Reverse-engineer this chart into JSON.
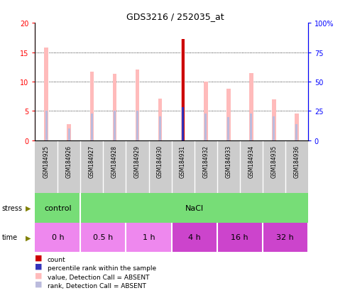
{
  "title": "GDS3216 / 252035_at",
  "samples": [
    "GSM184925",
    "GSM184926",
    "GSM184927",
    "GSM184928",
    "GSM184929",
    "GSM184930",
    "GSM184931",
    "GSM184932",
    "GSM184933",
    "GSM184934",
    "GSM184935",
    "GSM184936"
  ],
  "pink_bar_heights": [
    15.8,
    2.7,
    11.7,
    11.3,
    12.1,
    7.1,
    17.2,
    10.0,
    8.8,
    11.4,
    7.0,
    4.5
  ],
  "blue_bar_heights": [
    5.0,
    2.0,
    4.6,
    5.0,
    5.0,
    4.1,
    5.6,
    4.6,
    3.9,
    4.6,
    4.1,
    2.8
  ],
  "count_heights": [
    0,
    0,
    0,
    0,
    0,
    0,
    17.2,
    0,
    0,
    0,
    0,
    0
  ],
  "percentile_rank_heights": [
    0,
    0,
    0,
    0,
    0,
    0,
    5.6,
    0,
    0,
    0,
    0,
    0
  ],
  "pink_bar_width": 0.18,
  "blue_bar_width": 0.1,
  "count_bar_width": 0.12,
  "percentile_bar_width": 0.08,
  "ylim_left": [
    0,
    20
  ],
  "ylim_right": [
    0,
    100
  ],
  "yticks_left": [
    0,
    5,
    10,
    15,
    20
  ],
  "yticks_right": [
    0,
    25,
    50,
    75,
    100
  ],
  "ytick_labels_left": [
    "0",
    "5",
    "10",
    "15",
    "20"
  ],
  "ytick_labels_right": [
    "0",
    "25",
    "50",
    "75",
    "100%"
  ],
  "count_color": "#cc0000",
  "pink_color": "#ffbbbb",
  "blue_rank_color": "#bbbbdd",
  "percentile_color": "#3333bb",
  "stress_regions": [
    {
      "label": "control",
      "xstart": 0,
      "xend": 2,
      "color": "#77dd77"
    },
    {
      "label": "NaCl",
      "xstart": 2,
      "xend": 12,
      "color": "#77dd77"
    }
  ],
  "time_regions": [
    {
      "label": "0 h",
      "xstart": 0,
      "xend": 2,
      "color": "#ee88ee"
    },
    {
      "label": "0.5 h",
      "xstart": 2,
      "xend": 4,
      "color": "#ee88ee"
    },
    {
      "label": "1 h",
      "xstart": 4,
      "xend": 6,
      "color": "#ee88ee"
    },
    {
      "label": "4 h",
      "xstart": 6,
      "xend": 8,
      "color": "#cc44cc"
    },
    {
      "label": "16 h",
      "xstart": 8,
      "xend": 10,
      "color": "#cc44cc"
    },
    {
      "label": "32 h",
      "xstart": 10,
      "xend": 12,
      "color": "#cc44cc"
    }
  ],
  "legend_items": [
    {
      "color": "#cc0000",
      "label": "count"
    },
    {
      "color": "#3333bb",
      "label": "percentile rank within the sample"
    },
    {
      "color": "#ffbbbb",
      "label": "value, Detection Call = ABSENT"
    },
    {
      "color": "#bbbbdd",
      "label": "rank, Detection Call = ABSENT"
    }
  ]
}
